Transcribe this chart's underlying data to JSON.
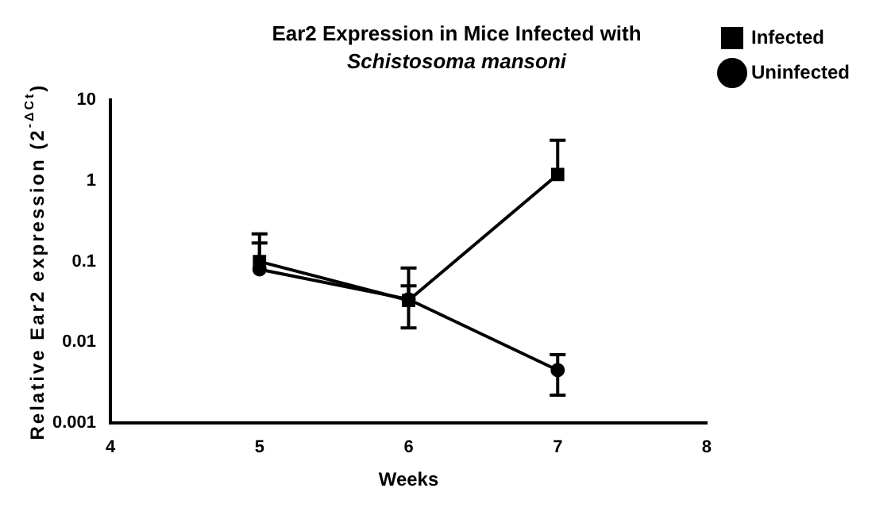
{
  "chart_data": {
    "type": "line",
    "title": "Ear2 Expression in Mice Infected with",
    "subtitle": "Schistosoma mansoni",
    "xlabel": "Weeks",
    "ylabel": "Relative Ear2 expression (2$^{-ΔCt}$)",
    "x": [
      5,
      6,
      7
    ],
    "series": [
      {
        "name": "Uninfected",
        "color": "#000000",
        "marker": "circle",
        "values": [
          0.08,
          0.034,
          0.0045
        ],
        "errors": [
          [
            0.08,
            0.17
          ],
          [
            0.034,
            0.05
          ],
          [
            0.0022,
            0.007
          ]
        ]
      },
      {
        "name": "Infected",
        "color": "#000000",
        "marker": "square",
        "values": [
          0.1,
          0.033,
          1.2
        ],
        "errors": [
          [
            0.1,
            0.22
          ],
          [
            0.015,
            0.083
          ],
          [
            1.2,
            3.2
          ]
        ]
      }
    ],
    "log": "y",
    "xlim": [
      4,
      8
    ],
    "xticks": [
      4,
      5,
      6,
      7,
      8
    ],
    "ylim": [
      0.001,
      10
    ],
    "yticks": [
      0.001,
      0.01,
      0.1,
      1,
      10
    ],
    "grid": false,
    "legend": "top right",
    "line_style": "solid"
  }
}
